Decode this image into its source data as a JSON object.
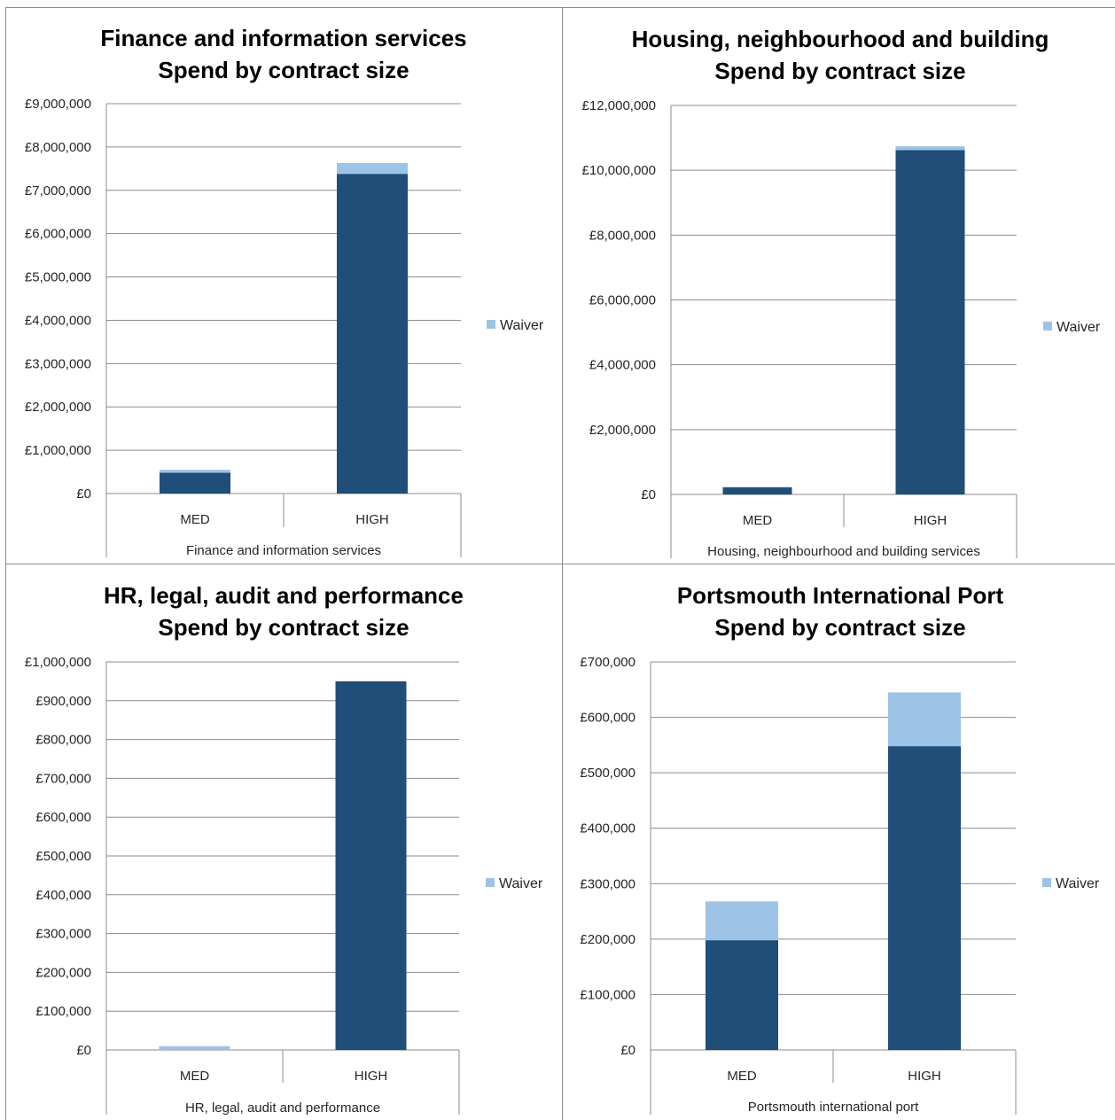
{
  "chart_data": [
    {
      "type": "bar",
      "stacked": true,
      "title": [
        "Finance and information services",
        "Spend by contract size"
      ],
      "categories": [
        "MED",
        "HIGH"
      ],
      "group_label": "Finance and information services",
      "ylim": [
        0,
        9000000
      ],
      "yticks": [
        "£0",
        "£1,000,000",
        "£2,000,000",
        "£3,000,000",
        "£4,000,000",
        "£5,000,000",
        "£6,000,000",
        "£7,000,000",
        "£8,000,000",
        "£9,000,000"
      ],
      "grid": true,
      "legend": "right",
      "series": [
        {
          "name": "",
          "color": "#1f4e79",
          "values": [
            480000,
            7380000
          ]
        },
        {
          "name": "Waiver",
          "color": "#9dc3e6",
          "values": [
            70000,
            250000
          ]
        }
      ]
    },
    {
      "type": "bar",
      "stacked": true,
      "title": [
        "Housing, neighbourhood and building",
        "Spend by contract size"
      ],
      "categories": [
        "MED",
        "HIGH"
      ],
      "group_label": "Housing, neighbourhood and building services",
      "ylim": [
        0,
        12000000
      ],
      "yticks": [
        "£0",
        "£2,000,000",
        "£4,000,000",
        "£6,000,000",
        "£8,000,000",
        "£10,000,000",
        "£12,000,000"
      ],
      "grid": true,
      "legend": "right",
      "series": [
        {
          "name": "",
          "color": "#1f4e79",
          "values": [
            220000,
            10620000
          ]
        },
        {
          "name": "Waiver",
          "color": "#9dc3e6",
          "values": [
            10000,
            120000
          ]
        }
      ]
    },
    {
      "type": "bar",
      "stacked": true,
      "title": [
        "HR, legal, audit and performance",
        "Spend by contract size"
      ],
      "categories": [
        "MED",
        "HIGH"
      ],
      "group_label": "HR, legal, audit and performance",
      "ylim": [
        0,
        1000000
      ],
      "yticks": [
        "£0",
        "£100,000",
        "£200,000",
        "£300,000",
        "£400,000",
        "£500,000",
        "£600,000",
        "£700,000",
        "£800,000",
        "£900,000",
        "£1,000,000"
      ],
      "grid": true,
      "legend": "right",
      "series": [
        {
          "name": "",
          "color": "#1f4e79",
          "values": [
            0,
            950000
          ]
        },
        {
          "name": "Waiver",
          "color": "#9dc3e6",
          "values": [
            10000,
            0
          ]
        }
      ]
    },
    {
      "type": "bar",
      "stacked": true,
      "title": [
        "Portsmouth International Port",
        "Spend by contract size"
      ],
      "categories": [
        "MED",
        "HIGH"
      ],
      "group_label": "Portsmouth international port",
      "ylim": [
        0,
        700000
      ],
      "yticks": [
        "£0",
        "£100,000",
        "£200,000",
        "£300,000",
        "£400,000",
        "£500,000",
        "£600,000",
        "£700,000"
      ],
      "grid": true,
      "legend": "right",
      "series": [
        {
          "name": "",
          "color": "#1f4e79",
          "values": [
            198000,
            548000
          ]
        },
        {
          "name": "Waiver",
          "color": "#9dc3e6",
          "values": [
            70000,
            97000
          ]
        }
      ]
    }
  ]
}
